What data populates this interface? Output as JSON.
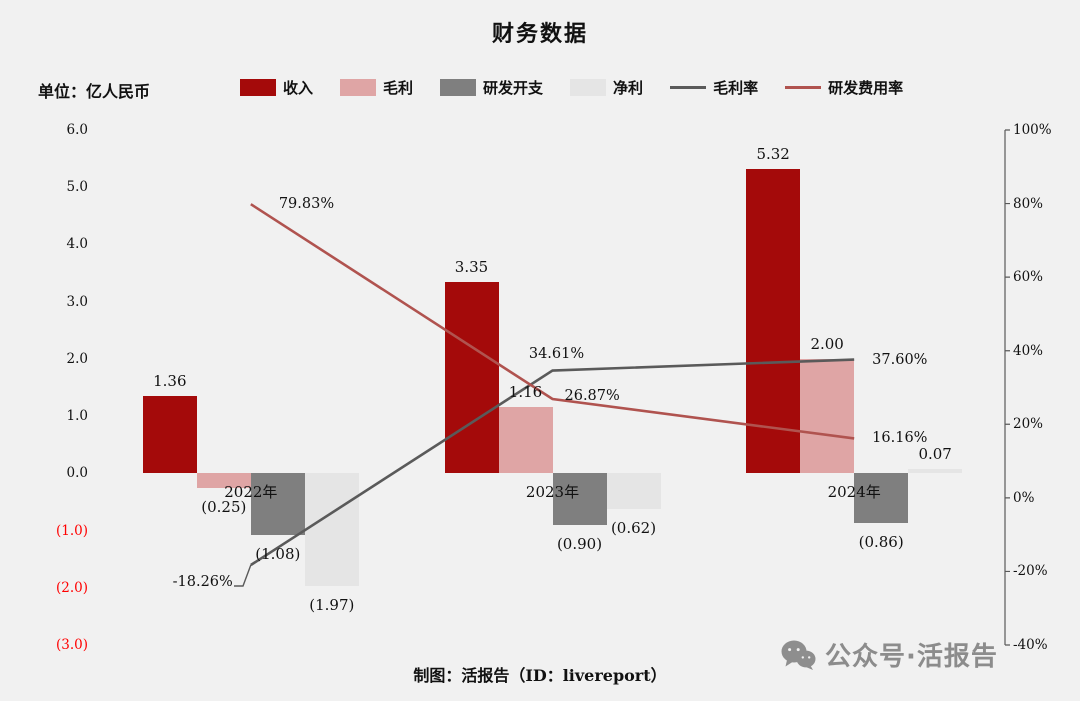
{
  "title": "财务数据",
  "unit_label": "单位：亿人民币",
  "footer": "制图：活报告（ID：livereport）",
  "watermark": {
    "icon": "wechat-icon",
    "text": "公众号·活报告"
  },
  "colors": {
    "background": "#F1F1F1",
    "revenue": "#A40A0A",
    "gross_profit": "#DFA5A5",
    "rnd_expense": "#7F7F7F",
    "net_profit": "#E5E5E5",
    "gross_margin_line": "#5A5A5A",
    "rnd_ratio_line": "#B0534F",
    "negative_label": "#FF0000",
    "axis_line": "#595959"
  },
  "legend": [
    {
      "key": "revenue",
      "label": "收入",
      "type": "box",
      "color": "#A40A0A"
    },
    {
      "key": "gross-profit",
      "label": "毛利",
      "type": "box",
      "color": "#DFA5A5"
    },
    {
      "key": "rnd-expense",
      "label": "研发开支",
      "type": "box",
      "color": "#7F7F7F"
    },
    {
      "key": "net-profit",
      "label": "净利",
      "type": "box",
      "color": "#E5E5E5"
    },
    {
      "key": "gross-margin",
      "label": "毛利率",
      "type": "line",
      "color": "#5A5A5A"
    },
    {
      "key": "rnd-ratio",
      "label": "研发费用率",
      "type": "line",
      "color": "#B0534F"
    }
  ],
  "chart_data": {
    "type": "combo-bar-line",
    "title": "财务数据",
    "unit": "亿人民币",
    "legend_position": "top",
    "categories": [
      "2022年",
      "2023年",
      "2024年"
    ],
    "bar_series": [
      {
        "key": "revenue",
        "name": "收入",
        "color": "#A40A0A",
        "values": [
          1.36,
          3.35,
          5.32
        ],
        "labels": [
          "1.36",
          "3.35",
          "5.32"
        ]
      },
      {
        "key": "gross-profit",
        "name": "毛利",
        "color": "#DFA5A5",
        "values": [
          -0.25,
          1.16,
          2.0
        ],
        "labels": [
          "(0.25)",
          "1.16",
          "2.00"
        ]
      },
      {
        "key": "rnd-expense",
        "name": "研发开支",
        "color": "#7F7F7F",
        "values": [
          -1.08,
          -0.9,
          -0.86
        ],
        "labels": [
          "(1.08)",
          "(0.90)",
          "(0.86)"
        ]
      },
      {
        "key": "net-profit",
        "name": "净利",
        "color": "#E5E5E5",
        "values": [
          -1.97,
          -0.62,
          0.07
        ],
        "labels": [
          "(1.97)",
          "(0.62)",
          "0.07"
        ]
      }
    ],
    "line_series": [
      {
        "key": "gross-margin",
        "name": "毛利率",
        "color": "#5A5A5A",
        "values": [
          -18.26,
          34.61,
          37.6
        ],
        "labels": [
          "-18.26%",
          "34.61%",
          "37.60%"
        ]
      },
      {
        "key": "rnd-ratio",
        "name": "研发费用率",
        "color": "#B0534F",
        "values": [
          79.83,
          26.87,
          16.16
        ],
        "labels": [
          "79.83%",
          "26.87%",
          "16.16%"
        ]
      }
    ],
    "left_axis": {
      "max": 6,
      "min": -3,
      "ticks": [
        "6.0",
        "5.0",
        "4.0",
        "3.0",
        "2.0",
        "1.0",
        "0.0",
        "(1.0)",
        "(2.0)",
        "(3.0)"
      ]
    },
    "right_axis": {
      "max": 100,
      "min": -40,
      "ticks": [
        "100%",
        "80%",
        "60%",
        "40%",
        "20%",
        "0%",
        "-20%",
        "-40%"
      ]
    },
    "grid": "off"
  }
}
